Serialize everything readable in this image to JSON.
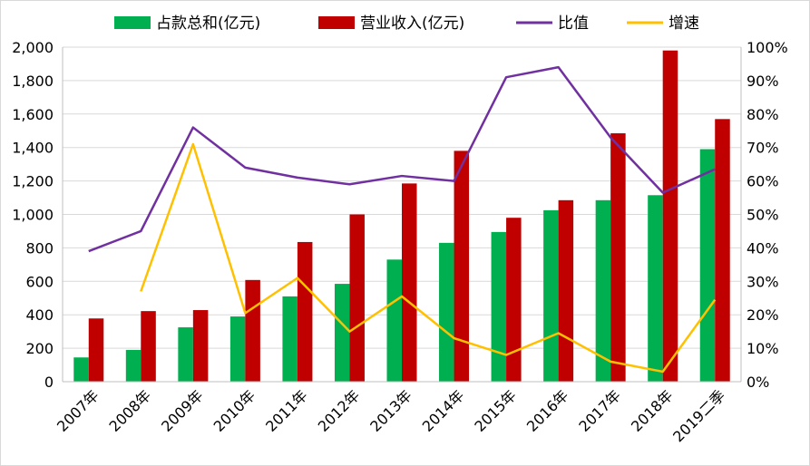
{
  "chart_data": {
    "type": "bar",
    "categories": [
      "2007年",
      "2008年",
      "2009年",
      "2010年",
      "2011年",
      "2012年",
      "2013年",
      "2014年",
      "2015年",
      "2016年",
      "2017年",
      "2018年",
      "2019二季"
    ],
    "series": [
      {
        "name": "占款总和(亿元)",
        "kind": "bar",
        "axis": "left",
        "color": "#00b050",
        "values": [
          145,
          190,
          325,
          390,
          510,
          585,
          730,
          830,
          895,
          1025,
          1085,
          1115,
          1390
        ]
      },
      {
        "name": "营业收入(亿元)",
        "kind": "bar",
        "axis": "left",
        "color": "#c00000",
        "values": [
          378,
          422,
          428,
          608,
          835,
          1000,
          1185,
          1380,
          980,
          1085,
          1485,
          1980,
          1570
        ]
      },
      {
        "name": "比值",
        "kind": "line",
        "axis": "right",
        "color": "#7030a0",
        "values": [
          39,
          45,
          76,
          64,
          61,
          59,
          61.5,
          60,
          91,
          94,
          73,
          56.5,
          63.5
        ]
      },
      {
        "name": "增速",
        "kind": "line",
        "axis": "right",
        "color": "#ffc000",
        "values": [
          null,
          27,
          71,
          20.5,
          31,
          15,
          25.5,
          13,
          8,
          14.5,
          6,
          3,
          24.5
        ]
      }
    ],
    "y_left": {
      "min": 0,
      "max": 2000,
      "step": 200,
      "tick_labels": [
        "0",
        "200",
        "400",
        "600",
        "800",
        "1,000",
        "1,200",
        "1,400",
        "1,600",
        "1,800",
        "2,000"
      ]
    },
    "y_right": {
      "min": 0,
      "max": 100,
      "step": 10,
      "tick_labels": [
        "0%",
        "10%",
        "20%",
        "30%",
        "40%",
        "50%",
        "60%",
        "70%",
        "80%",
        "90%",
        "100%"
      ]
    },
    "grid": true,
    "legend_position": "top"
  }
}
